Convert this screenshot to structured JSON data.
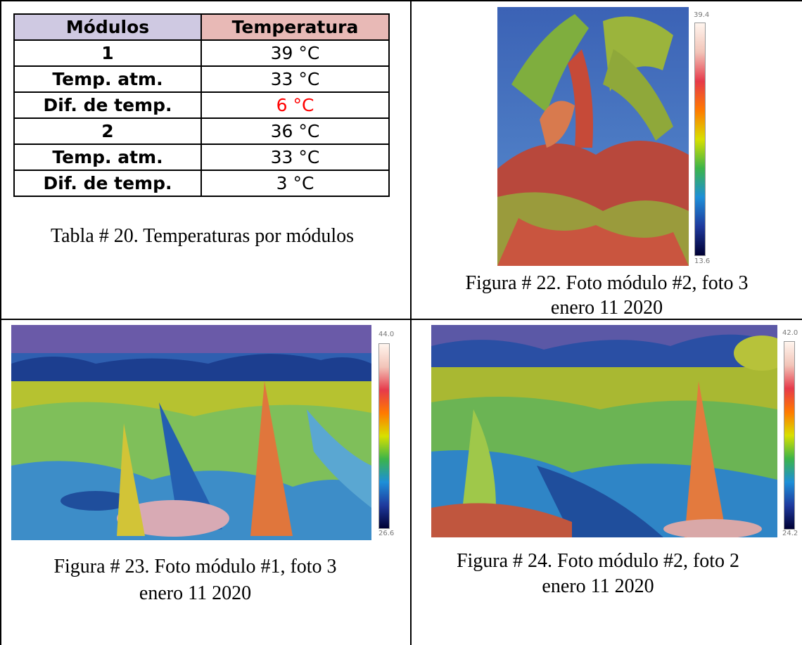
{
  "table": {
    "headers": [
      "Módulos",
      "Temperatura"
    ],
    "rows": [
      {
        "label": "1",
        "value": "39 °C"
      },
      {
        "label": "Temp. atm.",
        "value": "33 °C"
      },
      {
        "label": "Dif. de temp.",
        "value": "6 °C",
        "highlight": "#ff0000"
      },
      {
        "label": "2",
        "value": "36 °C"
      },
      {
        "label": "Temp. atm.",
        "value": "33 °C"
      },
      {
        "label": "Dif. de temp.",
        "value": "3 °C"
      }
    ],
    "caption": "Tabla # 20. Temperaturas por módulos"
  },
  "figures": {
    "fig22": {
      "caption_line1": "Figura # 22. Foto módulo #2, foto 3",
      "caption_line2": "enero 11 2020",
      "scale_max": "39.4",
      "scale_min": "13.6"
    },
    "fig23": {
      "caption_line1": "Figura # 23. Foto módulo #1, foto 3",
      "caption_line2": "enero 11 2020",
      "scale_max": "44.0",
      "scale_min": "26.6"
    },
    "fig24": {
      "caption_line1": "Figura # 24. Foto módulo #2, foto 2",
      "caption_line2": "enero 11 2020",
      "scale_max": "42.0",
      "scale_min": "24.2"
    }
  },
  "colors": {
    "header_modulos_bg": "#cfc9e2",
    "header_temperatura_bg": "#e8b9b6",
    "highlight_text": "#ff0000"
  },
  "icons": [
    "thermal-image",
    "color-scale-bar"
  ]
}
